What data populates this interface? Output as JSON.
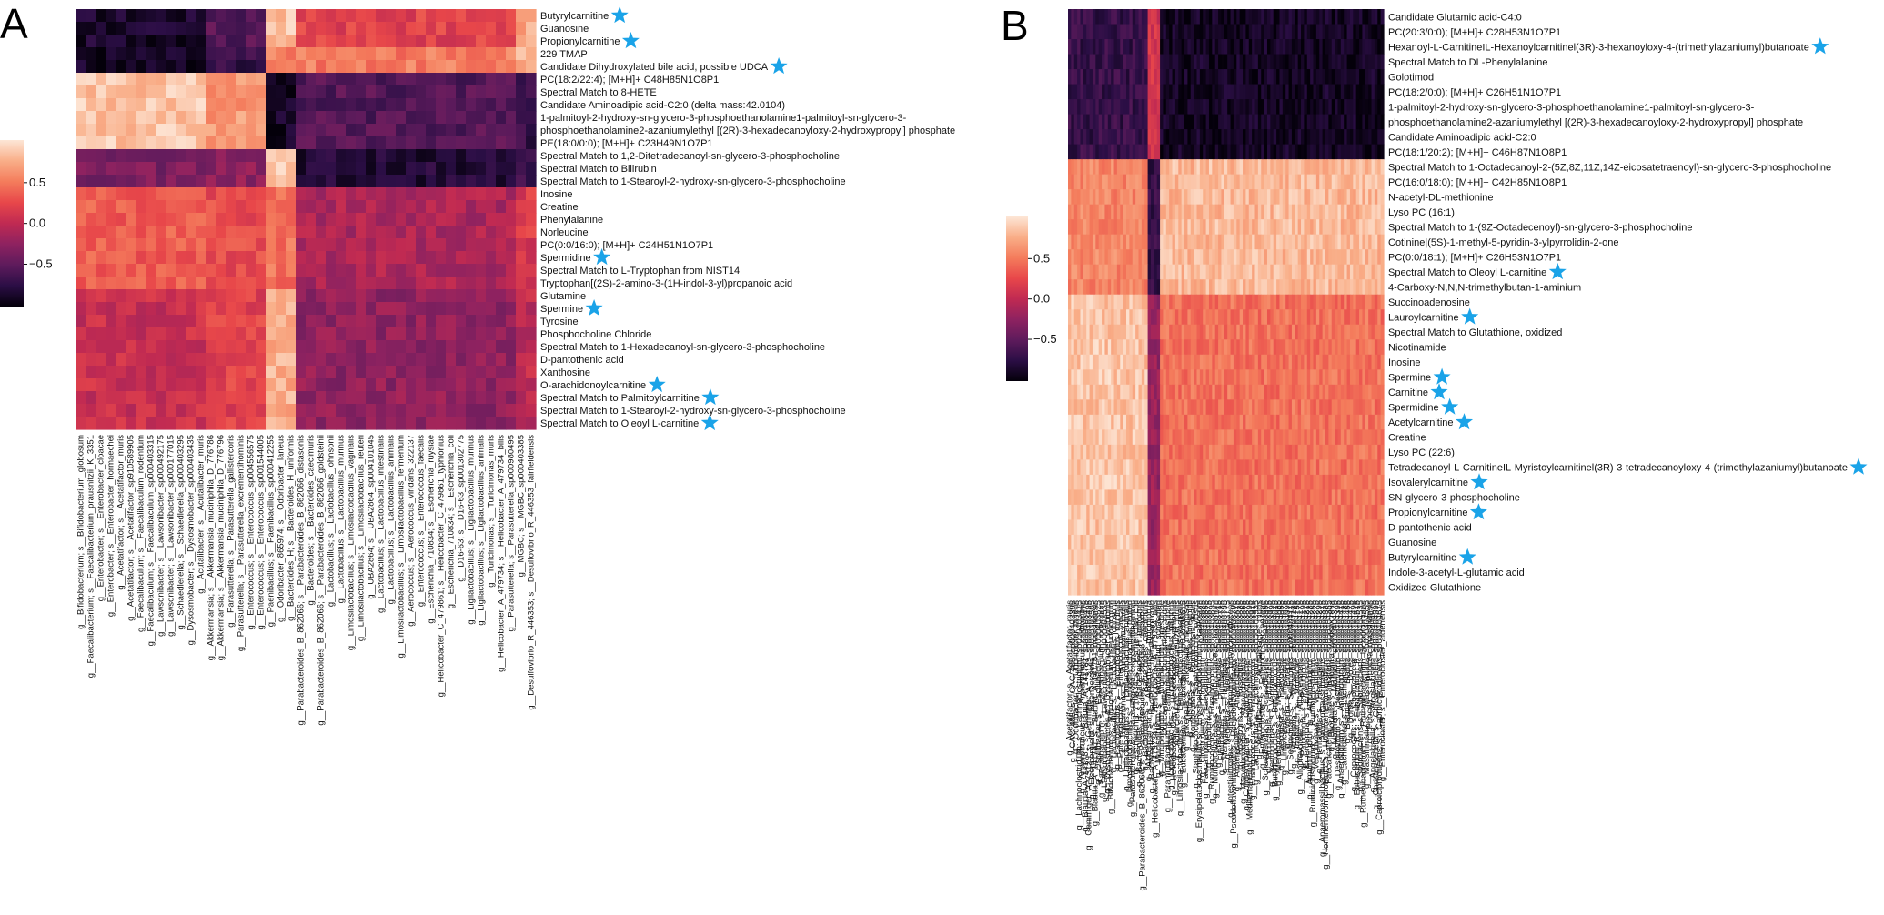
{
  "colors": {
    "star": "#1aa3e8",
    "colormap": [
      "#04000a",
      "#2b0e45",
      "#5e1b5c",
      "#8e2260",
      "#c02a52",
      "#e8474a",
      "#f47c5c",
      "#f9ae88",
      "#fde6d6"
    ]
  },
  "chart_data": [
    {
      "type": "heatmap",
      "panel_label": "A",
      "colorbar_ticks": [
        {
          "value": 0.5,
          "label": "0.5"
        },
        {
          "value": 0.0,
          "label": "0.0"
        },
        {
          "value": -0.5,
          "label": "−0.5"
        }
      ],
      "value_range": [
        -1,
        1
      ],
      "row_labels": [
        "Butyrylcarnitine",
        "Guanosine",
        "Propionylcarnitine",
        "229 TMAP",
        "Candidate Dihydroxylated bile acid, possible UDCA",
        "PC(18:2/22:4); [M+H]+ C48H85N1O8P1",
        "Spectral Match to 8-HETE",
        "Candidate Aminoadipic acid-C2:0 (delta mass:42.0104)",
        "1-palmitoyl-2-hydroxy-sn-glycero-3-phosphoethanolamine1-palmitoyl-sn-glycero-3-",
        "phosphoethanolamine2-azaniumylethyl [(2R)-3-hexadecanoyloxy-2-hydroxypropyl] phosphate",
        "PE(18:0/0:0); [M+H]+ C23H49N1O7P1",
        "Spectral Match to 1,2-Ditetradecanoyl-sn-glycero-3-phosphocholine",
        "Spectral Match to Bilirubin",
        "Spectral Match to 1-Stearoyl-2-hydroxy-sn-glycero-3-phosphocholine",
        "Inosine",
        "Creatine",
        "Phenylalanine",
        "Norleucine",
        "PC(0:0/16:0); [M+H]+ C24H51N1O7P1",
        "Spermidine",
        "Spectral Match to L-Tryptophan from NIST14",
        "Tryptophan[(2S)-2-amino-3-(1H-indol-3-yl)propanoic acid",
        "Glutamine",
        "Spermine",
        "Tyrosine",
        "Phosphocholine Chloride",
        "Spectral Match to 1-Hexadecanoyl-sn-glycero-3-phosphocholine",
        "D-pantothenic acid",
        "Xanthosine",
        "O-arachidonoylcarnitine",
        "Spectral Match to Palmitoylcarnitine",
        "Spectral Match to 1-Stearoyl-2-hydroxy-sn-glycero-3-phosphocholine",
        "Spectral Match to Oleoyl L-carnitine"
      ],
      "starred_rows": [
        0,
        2,
        4,
        19,
        23,
        29,
        30,
        32
      ],
      "column_labels": [
        "g__Bifidobacterium; s__Bifidobacterium_globosum",
        "g__Faecalibacterium; s__Faecalibacterium_prausnitzii_K_3351",
        "g__Enterobacter; s__Enterobacter_cloacae",
        "g__Enterobacter; s__Enterobacter_hormaechei",
        "g__Acetatifactor; s__Acetatifactor_muris",
        "g__Acetatifactor; s__Acetatifactor_sp910589905",
        "g__Faecalibaculum; s__Faecalibaculum_rodentium",
        "g__Faecalibaculum; s__Faecalibaculum_sp000403315",
        "g__Lawsonibacter; s__Lawsonibacter_sp000492175",
        "g__Lawsonibacter; s__Lawsonibacter_sp000177015",
        "g__Schaedlerella; s__Schaedlerella_sp000403295",
        "g__Dysosmobacter; s__Dysosmobacter_sp000403435",
        "g__Acutalibacter; s__Acutalibacter_muris",
        "g__Akkermansia; s__Akkermansia_muciniphila_D_776786",
        "g__Akkermansia; s__Akkermansia_muciniphila_D_776796",
        "g__Parasutterella; s__Parasutterella_gallistercoris",
        "g__Parasutterella; s__Parasutterella_excrementihominis",
        "g__Enterococcus; s__Enterococcus_sp004556575",
        "g__Enterococcus; s__Enterococcus_sp001544005",
        "g__Paenibacillus; s__Paenibacillus_sp000412255",
        "g__Odoribacter_865974; s__Odoribacter_laneus",
        "g__Bacteroides_H; s__Bacteroides_H_uniformis",
        "g__Parabacteroides_B_862066; s__Parabacteroides_B_862066_distasonis",
        "g__Bacteroides; s__Bacteroides_caecimuris",
        "g__Parabacteroides_B_862066; s__Parabacteroides_B_862066_goldsteinii",
        "g__Lactobacillus; s__Lactobacillus_johnsonii",
        "g__Lactobacillus; s__Lactobacillus_murinus",
        "g__Limosilactobacillus; s__Limosilactobacillus_vaginalis",
        "g__Limosilactobacillus; s__Limosilactobacillus_reuteri",
        "g__UBA2864; s__UBA2864_sp004101045",
        "g__Lactobacillus; s__Lactobacillus_intestinalis",
        "g__Lactobacillus; s__Lactobacillus_animalis",
        "g__Limosilactobacillus; s__Limosilactobacillus_fermentum",
        "g__Aerococcus; s__Aerococcus_viridans_322137",
        "g__Enterococcus; s__Enterococcus_faecalis",
        "g__Escherichia_710834; s__Escherichia_ruysiae",
        "g__Helicobacter_C_479861; s__Helicobacter_C_479861_typhlonius",
        "g__Escherichia_710834; s__Escherichia_coli",
        "g__D16-63; s__D16-63_sp001302775",
        "g__Ligilactobacillus; s__Ligilactobacillus_murinus",
        "g__Ligilactobacillus; s__Ligilactobacillus_animalis",
        "g__Turicimonas; s__Turicimonas_muris",
        "g__Helicobacter_A_479734; s__Helicobacter_A_479734_bilis",
        "g__Parasutterella; s__Parasutterella_sp000980495",
        "g__MGBC; s__MGBC_sp000403385",
        "g__Desulfovibrio_R_446353; s__Desulfovibrio_R_446353_fairfieldensis"
      ]
    },
    {
      "type": "heatmap",
      "panel_label": "B",
      "colorbar_ticks": [
        {
          "value": 0.5,
          "label": "0.5"
        },
        {
          "value": 0.0,
          "label": "0.0"
        },
        {
          "value": -0.5,
          "label": "−0.5"
        }
      ],
      "value_range": [
        -1,
        1
      ],
      "row_labels": [
        "Candidate Glutamic acid-C4:0",
        "PC(20:3/0:0); [M+H]+ C28H53N1O7P1",
        "Hexanoyl-L-CarnitineIL-Hexanoylcarnitinel(3R)-3-hexanoyloxy-4-(trimethylazaniumyl)butanoate",
        "Spectral Match to DL-Phenylalanine",
        "Golotimod",
        "PC(18:2/0:0); [M+H]+ C26H51N1O7P1",
        "1-palmitoyl-2-hydroxy-sn-glycero-3-phosphoethanolamine1-palmitoyl-sn-glycero-3-",
        "phosphoethanolamine2-azaniumylethyl [(2R)-3-hexadecanoyloxy-2-hydroxypropyl] phosphate",
        "Candidate Aminoadipic acid-C2:0",
        "PC(18:1/20:2); [M+H]+ C46H87N1O8P1",
        "Spectral Match to 1-Octadecanoyl-2-(5Z,8Z,11Z,14Z-eicosatetraenoyl)-sn-glycero-3-phosphocholine",
        "PC(16:0/18:0); [M+H]+ C42H85N1O8P1",
        "N-acetyl-DL-methionine",
        "Lyso PC (16:1)",
        "Spectral Match to 1-(9Z-Octadecenoyl)-sn-glycero-3-phosphocholine",
        "Cotinine|(5S)-1-methyl-5-pyridin-3-ylpyrrolidin-2-one",
        "PC(0:0/18:1); [M+H]+ C26H53N1O7P1",
        "Spectral Match to Oleoyl L-carnitine",
        "4-Carboxy-N,N,N-trimethylbutan-1-aminium",
        "Succinoadenosine",
        "Lauroylcarnitine",
        "Spectral Match to Glutathione, oxidized",
        "Nicotinamide",
        "Inosine",
        "Spermine",
        "Carnitine",
        "Spermidine",
        "Acetylcarnitine",
        "Creatine",
        "Lyso PC (22:6)",
        "Tetradecanoyl-L-CarnitineIL-Myristoylcarnitinel(3R)-3-tetradecanoyloxy-4-(trimethylazaniumyl)butanoate",
        "Isovalerylcarnitine",
        "SN-glycero-3-phosphocholine",
        "Propionylcarnitine",
        "D-pantothenic acid",
        "Guanosine",
        "Butyrylcarnitine",
        "Indole-3-acetyl-L-glutamic acid",
        "Oxidized Glutathione"
      ],
      "starred_rows": [
        2,
        17,
        20,
        24,
        25,
        26,
        27,
        30,
        31,
        33,
        36
      ],
      "column_labels": [
        "g__Acetatifactor; s__Acetatifactor_muris",
        "g__CAG-485; s__CAG-485_sp000403395",
        "g__Odoribacter; s__Odoribacter_laneus",
        "g__Lachnoclostridium; s__Lachnoclostridium_sp000403415",
        "g__Anaerotruncus; s__Anaerotruncus_colihominis",
        "g__Blautia_A_141781; s__Blautia_A_141781_sp000403475",
        "g__Gemmiger_A_73129; s__Gemmiger_A_73129_sp000403495",
        "g__Eisenbergiella; s__Eisenbergiella_sp000403505",
        "g__Blautia_A_141781; s__Blautia_A_141781_massiliensis",
        "g__Oscillibacter; s__Oscillibacter_sp000403525",
        "g__Faecalibaculum; s__Faecalibaculum_rodentium",
        "g__Lawsonibacter; s__Lawsonibacter_sp000403535",
        "g__Dysosmobacter; s__Dysosmobacter_welbionis",
        "g__Bifidobacterium; s__Bifidobacterium_pseudolongum",
        "g__Lactobacillus; s__Lactobacillus_johnsonii",
        "g__Lactobacillus; s__Lactobacillus_murinus",
        "g__Enterococcus; s__Enterococcus_faecalis",
        "g__Turicimonas; s__Turicimonas_muris",
        "g__Ligilactobacillus; s__Ligilactobacillus_animalis",
        "g__Limosilactobacillus; s__Limosilactobacillus_reuteri",
        "g__Parasutterella; s__Parasutterella_excrementihominis",
        "g__Escherichia_710834; s__Escherichia_coli",
        "g__Bacteroides_H; s__Bacteroides_H_uniformis",
        "g__Parabacteroides_B_862066; s__Parabacteroides_B_862066_distasonis",
        "g__Bacteroides; s__Bacteroides_caecimuris",
        "g__Akkermansia; s__Akkermansia_muciniphila",
        "g__Bacteroides; s__Bacteroides_thetaiotaomicron",
        "g__Helicobacter_A_479734; s__Helicobacter_A_479734_bilis",
        "g__Mucispirillum; s__Mucispirillum_schaedleri",
        "g__Muribaculum; s__Muribaculum_intestinale",
        "g__Duncaniella; s__Duncaniella_muris",
        "g__Paramuribaculum; s__Paramuribaculum_intestinale",
        "g__Ligilactobacillus; s__Ligilactobacillus_murinus",
        "g__Helicobacter_C; s__Helicobacter_C_typhlonius",
        "g__Adlercreutzia; s__Adlercreutzia_muris",
        "g__Limosilactobacillus; s__Limosilactobacillus_vaginalis",
        "g__Eubacterium; s__Eubacterium_sp000403615",
        "g__Rikenella; s__Rikenella_microfusus",
        "g__Alistipes; s__Alistipes_finegoldii",
        "g__Romboutsia; s__Romboutsia_ilealis",
        "g__Staphylococcus; s__Staphylococcus_xylosus",
        "g__Erysipelatoclostridium; s__Erysipelatoclostridium_ramosum",
        "g__Clostridium; s__Clostridium_sp000403635",
        "g__Faecalimonas; s__Faecalimonas_sp000403655",
        "g__Kineothrix; s__Kineothrix_sp000403675",
        "g__Ruminococcus; s__Ruminococcus_sp000403695",
        "g__Muribaculaceae; s__Muribaculaceae_bacterium",
        "g__Prevotella; s__Prevotella_sp000403715",
        "g__Flintibacter; s__Flintibacter_sp000403735",
        "g__Harryflintia; s__Harryflintia_sp000403755",
        "g__Neglecta; s__Neglecta_sp000403775",
        "g__Intestinimonas; s__Intestinimonas_butyriciproducens",
        "g__Pseudoflavonifractor; s__Pseudoflavonifractor_sp000403795",
        "g__Anaerostipes; s__Anaerostipes_sp000403815",
        "g__Roseburia; s__Roseburia_sp000403835",
        "g__Marvinbryantia; s__Marvinbryantia_sp000403855",
        "g__Colidextribacter; s__Colidextribacter_sp000403875",
        "g__Mediterraneibacter; s__Mediterraneibacter_sp000403895",
        "g__Frisingicoccus; s__Frisingicoccus_sp000403915",
        "g__Lachnospira; s__Lachnospira_sp000403935",
        "g__Acutalibacter; s__Acutalibacter_muris",
        "g__Enterocloster; s__Enterocloster_bolteae",
        "g__Schaedlerella; s__Schaedlerella_sp000403955",
        "g__Hungatella; s__Hungatella_sp000403975",
        "g__Ventrimonas; s__Ventrimonas_sp000403995",
        "g__Butyricicoccus; s__Butyricicoccus_sp000404015",
        "g__Merdimonas; s__Merdimonas_sp000404035",
        "g__Faecousia; s__Faecousia_sp000404055",
        "g__Limivicinus; s__Limivicinus_sp000404075",
        "g__Evtepia; s__Evtepia_sp000404095",
        "g__Sellimonas; s__Sellimonas_sp000404115",
        "g__Tyzzerella; s__Tyzzerella_sp000404135",
        "g__Ihubacter; s__Ihubacter_sp000404155",
        "g__Alloprevotella; s__Alloprevotella_sp000404175",
        "g__Paludicola; s__Paludicola_sp000404195",
        "g__Emergencia; s__Emergencia_sp000404215",
        "g__Amulumruptor; s__Amulumruptor_sp000404235",
        "g__Ruminiclostridium; s__Ruminiclostridium_sp000404255",
        "g__Vescimonas; s__Vescimonas_sp000404275",
        "g__Heritagella; s__Heritagella_sp000404295",
        "g__Anaeromassilibacillus; s__Anaeromassilibacillus_sp000404315",
        "g__Hominenteromicrobium; s__Hominenteromicrobium_sp000404335",
        "g__Faecalicatena; s__Faecalicatena_sp000404355",
        "g__Bilophila; s__Bilophila_wadsworthia",
        "g__Mailhella; s__Mailhella_sp000404375",
        "g__Desulfovibrio; s__Desulfovibrio_sp000404395",
        "g__Anaerotignum; s__Anaerotignum_sp000404415",
        "g__Lachnotalea; s__Lachnotalea_sp000404435",
        "g__Blautia; s__Blautia_sp000404455",
        "g__Dorea; s__Dorea_sp000404475",
        "g__Coprococcus; s__Coprococcus_sp000404495",
        "g__Eubacterium_R; s__Eubacterium_R_sp000404515",
        "g__Sporofaciens; s__Sporofaciens_sp000404535",
        "g__Ruthenibacterium; s__Ruthenibacterium_lactatiformans",
        "g__Massiliimalia; s__Massiliimalia_sp000404555",
        "g__Phocea; s__Phocea_massiliensis",
        "g__Angelakisella; s__Angelakisella_sp000404575",
        "g__Christensenella; s__Christensenella_sp000404595",
        "g__Caproiciproducens; s__Caproiciproducens_sp000404615",
        "g__Enterocloster; s__Enterocloster_aldenensis"
      ]
    }
  ]
}
